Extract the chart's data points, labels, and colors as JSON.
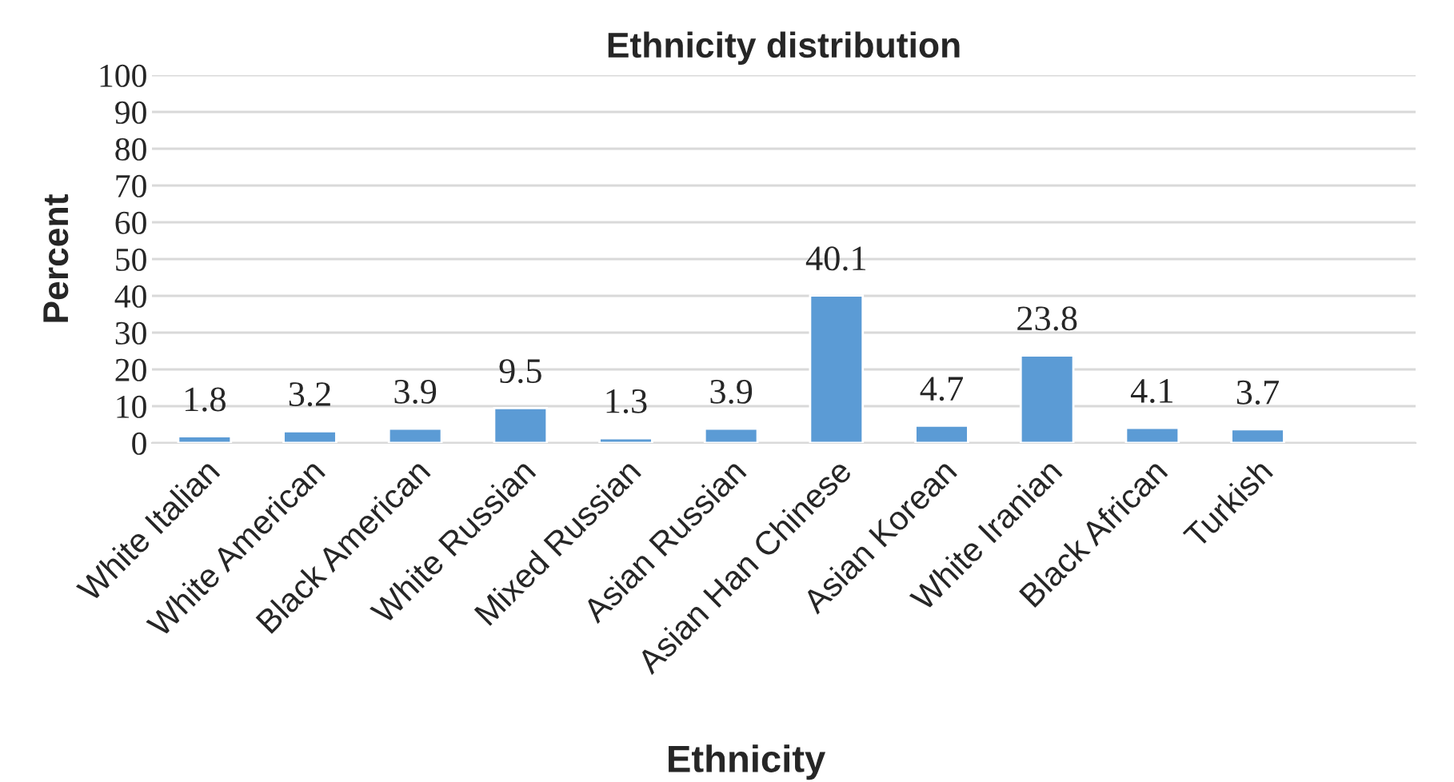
{
  "chart_data": {
    "type": "bar",
    "title": "Ethnicity distribution",
    "xlabel": "Ethnicity",
    "ylabel": "Percent",
    "categories": [
      "White Italian",
      "White American",
      "Black American",
      "White Russian",
      "Mixed Russian",
      "Asian Russian",
      "Asian Han Chinese",
      "Asian Korean",
      "White Iranian",
      "Black African",
      "Turkish",
      null
    ],
    "values": [
      1.8,
      3.2,
      3.9,
      9.5,
      1.3,
      3.9,
      40.1,
      4.7,
      23.8,
      4.1,
      3.7,
      null
    ],
    "color": "#5b9bd5",
    "ylim": [
      0,
      100
    ],
    "yticks": [
      0,
      10,
      20,
      30,
      40,
      50,
      60,
      70,
      80,
      90,
      100
    ],
    "grid": "y",
    "data_labels": true
  }
}
